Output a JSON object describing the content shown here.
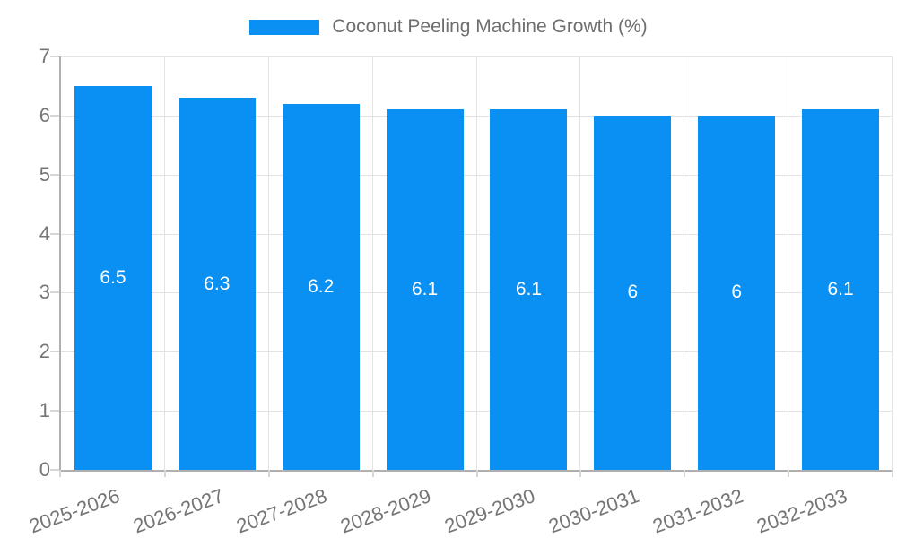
{
  "legend": {
    "label": "Coconut Peeling Machine Growth (%)"
  },
  "chart_data": {
    "type": "bar",
    "title": "Coconut Peeling Machine Growth (%)",
    "series_name": "Coconut Peeling Machine Growth (%)",
    "categories": [
      "2025-2026",
      "2026-2027",
      "2027-2028",
      "2028-2029",
      "2029-2030",
      "2030-2031",
      "2031-2032",
      "2032-2033"
    ],
    "values": [
      6.5,
      6.3,
      6.2,
      6.1,
      6.1,
      6,
      6,
      6.1
    ],
    "value_labels": [
      "6.5",
      "6.3",
      "6.2",
      "6.1",
      "6.1",
      "6",
      "6",
      "6.1"
    ],
    "xlabel": "",
    "ylabel": "",
    "ylim": [
      0,
      7
    ],
    "yticks": [
      0,
      1,
      2,
      3,
      4,
      5,
      6,
      7
    ],
    "grid": true,
    "legend_position": "top",
    "colors": {
      "bar": "#0a8ff3",
      "value_label": "#ffffff",
      "axis_text": "#757575",
      "legend_text": "#6e6e6e",
      "gridline": "#e3e3e3",
      "axis_line": "#b0b0b0",
      "tick": "#d6d6d6",
      "background": "#ffffff"
    }
  }
}
